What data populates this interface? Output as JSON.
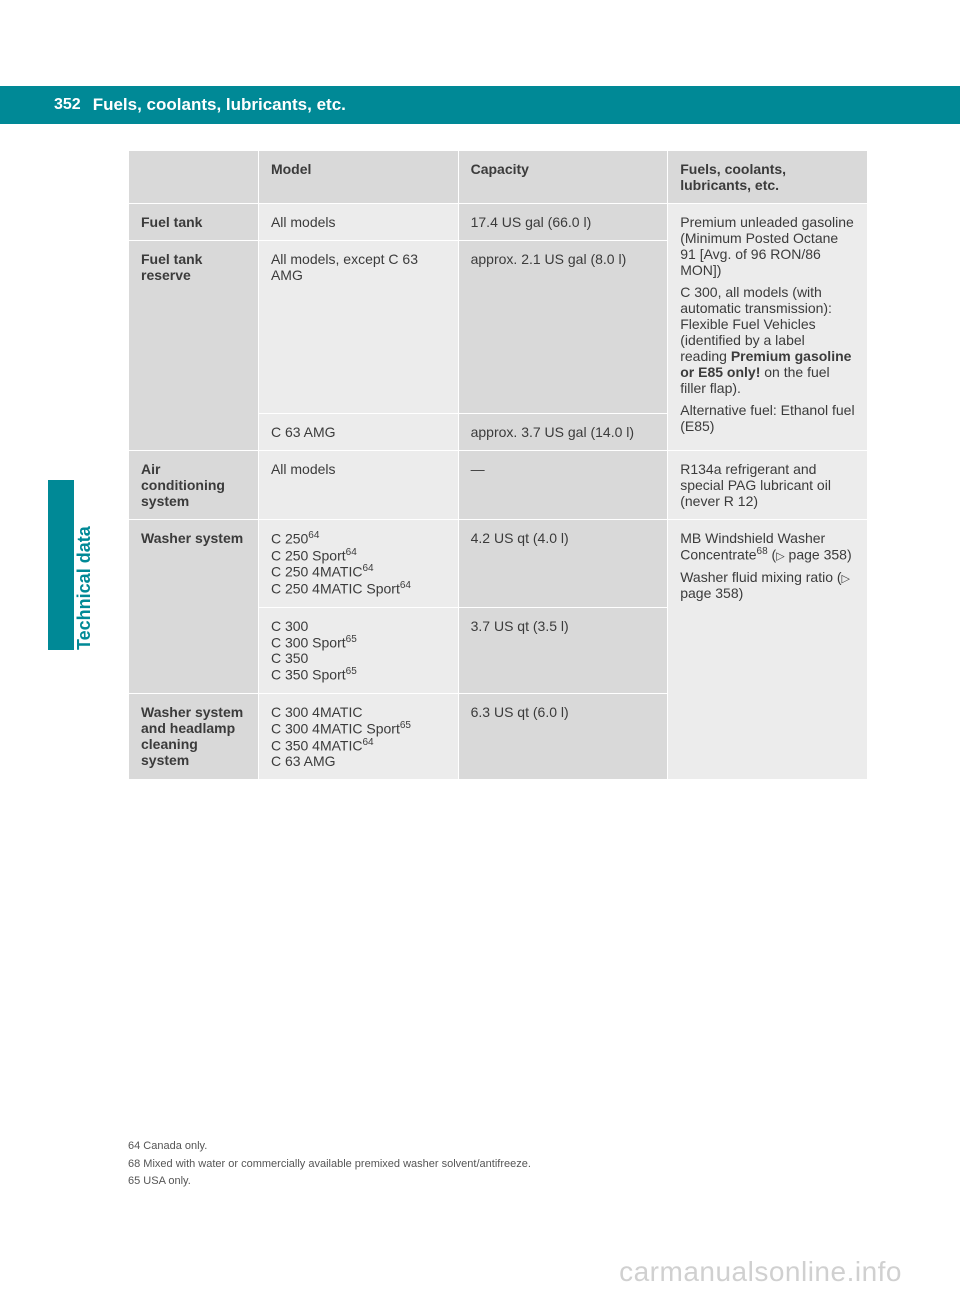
{
  "page": {
    "number": "352",
    "title": "Fuels, coolants, lubricants, etc.",
    "side_label": "Technical data"
  },
  "table": {
    "headers": {
      "c1": "",
      "c2": "Model",
      "c3": "Capacity",
      "c4": "Fuels, coolants, lubricants, etc."
    },
    "fuel_tank": {
      "label": "Fuel tank",
      "model": "All models",
      "capacity": "17.4 US gal (66.0 l)"
    },
    "fuel_tank_reserve": {
      "label": "Fuel tank reserve",
      "model1": "All models, except C 63 AMG",
      "capacity1": "approx. 2.1 US gal (8.0 l)",
      "model2": "C 63 AMG",
      "capacity2": "approx. 3.7 US gal (14.0 l)"
    },
    "fuel_notes": {
      "p1": "Premium unleaded gasoline (Minimum Posted Octane 91 [Avg. of 96 RON/86 MON])",
      "p2a": "C 300, all models (with automatic transmission): Flexible Fuel Vehicles (identified by a label reading ",
      "p2b": "Premium gasoline or E85 only!",
      "p2c": " on the fuel filler flap).",
      "p3": "Alternative fuel: Ethanol fuel (E85)"
    },
    "ac": {
      "label": "Air conditioning system",
      "model": "All models",
      "capacity": "—",
      "notes": "R134a refrigerant and special PAG lubricant oil (never R 12)"
    },
    "washer": {
      "label": "Washer system",
      "m1a": "C 250",
      "m1b": "C 250 Sport",
      "m1c": "C 250 4MATIC",
      "m1d": "C 250 4MATIC Sport",
      "cap1": "4.2 US qt (4.0 l)",
      "m2a": "C 300",
      "m2b": "C 300 Sport",
      "m2c": "C 350",
      "m2d": "C 350 Sport",
      "cap2": "3.7 US qt (3.5 l)"
    },
    "washer_head": {
      "label": "Washer system and headlamp cleaning system",
      "m1": "C 300 4MATIC",
      "m2": "C 300 4MATIC Sport",
      "m3": "C 350 4MATIC",
      "m4": "C 63 AMG",
      "cap": "6.3 US qt (6.0 l)"
    },
    "washer_notes": {
      "p1a": "MB Windshield Washer Concentrate",
      "p1b": " (",
      "p1c": " page 358)",
      "p2a": "Washer fluid mixing ratio (",
      "p2b": " page 358)"
    },
    "sup64": "64",
    "sup65": "65",
    "sup68": "68"
  },
  "footnotes": {
    "f64": "64 Canada only.",
    "f68": "68 Mixed with water or commercially available premixed washer solvent/antifreeze.",
    "f65": "65 USA only."
  },
  "watermark": "carmanualsonline.info"
}
